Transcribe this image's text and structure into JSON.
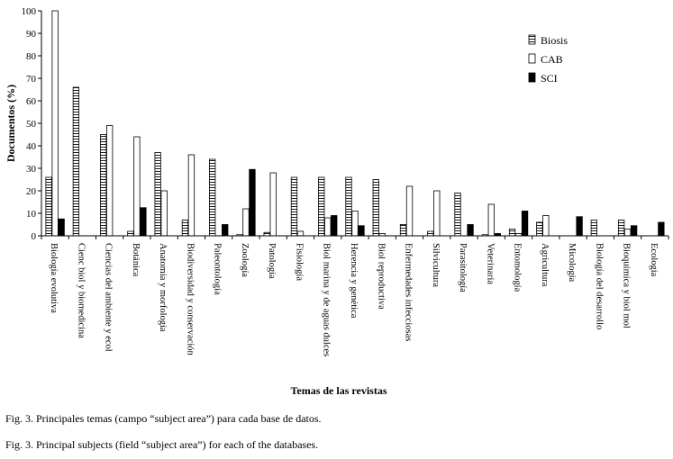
{
  "chart_data": {
    "type": "bar",
    "xlabel": "Temas de las revistas",
    "ylabel": "Documentos (%)",
    "ylim": [
      0,
      100
    ],
    "yticks": [
      0,
      10,
      20,
      30,
      40,
      50,
      60,
      70,
      80,
      90,
      100
    ],
    "legend_position": "top-right",
    "categories": [
      "Biología evolutiva",
      "Cienc biol y biomedicina",
      "Ciencias del ambiente y ecol",
      "Botánica",
      "Anatomía y morfología",
      "Biodiversidad y conservación",
      "Paleontología",
      "Zoología",
      "Patología",
      "Fisiología",
      "Biol marina y de aguas dulces",
      "Herencia y genética",
      "Biol reproductiva",
      "Enfermedades infecciosas",
      "Silvicultura",
      "Parasitología",
      "Veterinaria",
      "Entomología",
      "Agricultura",
      "Micología",
      "Biología del desarrollo",
      "Bioquímica y biol mol",
      "Ecología"
    ],
    "series": [
      {
        "name": "Biosis",
        "pattern": "hatch",
        "color": "#000000",
        "values": [
          26,
          66,
          45,
          2,
          37,
          7,
          34,
          0.5,
          1.5,
          26,
          26,
          26,
          25,
          5,
          2,
          19,
          0.5,
          3,
          6,
          0,
          7,
          7,
          0
        ]
      },
      {
        "name": "CAB",
        "pattern": "empty",
        "color": "#000000",
        "values": [
          100,
          0,
          49,
          44,
          20,
          36,
          0,
          12,
          28,
          2,
          8,
          11,
          1,
          22,
          20,
          0,
          14,
          1,
          9,
          0,
          0,
          3,
          0
        ]
      },
      {
        "name": "SCI",
        "pattern": "solid",
        "color": "#000000",
        "values": [
          7.5,
          0,
          0,
          12.5,
          0,
          0,
          5,
          29.5,
          0,
          0,
          9,
          4.5,
          0,
          0,
          0,
          5,
          1,
          11,
          0,
          8.5,
          0,
          4.5,
          6
        ]
      }
    ]
  },
  "captions": {
    "es": "Fig. 3. Principales temas (campo “subject area”) para cada base de datos.",
    "en": "Fig. 3. Principal subjects (field “subject area”) for each of the databases."
  }
}
